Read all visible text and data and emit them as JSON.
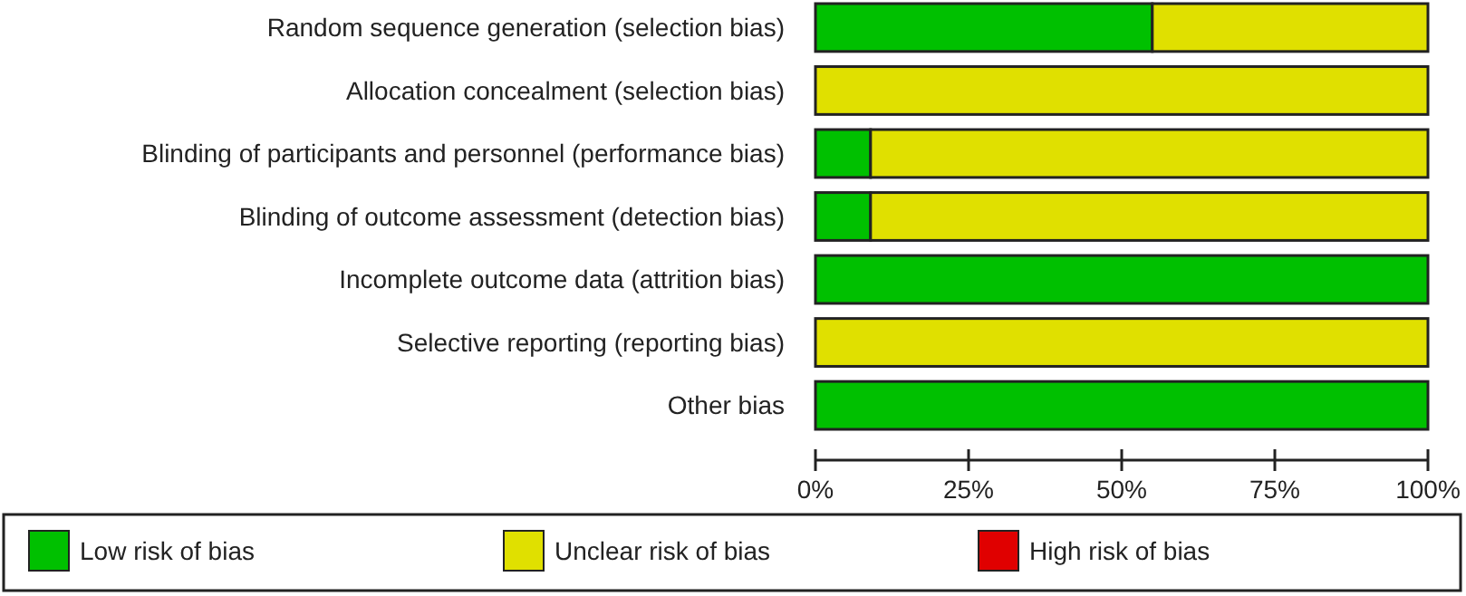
{
  "chart_data": {
    "type": "bar",
    "orientation": "horizontal",
    "stacked": true,
    "categories": [
      "Random sequence generation (selection bias)",
      "Allocation concealment (selection bias)",
      "Blinding of participants and personnel (performance bias)",
      "Blinding of outcome assessment (detection bias)",
      "Incomplete outcome data (attrition bias)",
      "Selective reporting (reporting bias)",
      "Other bias"
    ],
    "series": [
      {
        "name": "Low risk of bias",
        "color": "#00c000",
        "values": [
          55,
          0,
          9,
          9,
          100,
          0,
          100
        ]
      },
      {
        "name": "Unclear risk of bias",
        "color": "#e0e000",
        "values": [
          45,
          100,
          91,
          91,
          0,
          100,
          0
        ]
      },
      {
        "name": "High risk of bias",
        "color": "#e00000",
        "values": [
          0,
          0,
          0,
          0,
          0,
          0,
          0
        ]
      }
    ],
    "xlim": [
      0,
      100
    ],
    "xticks": [
      {
        "value": 0,
        "label": "0%"
      },
      {
        "value": 25,
        "label": "25%"
      },
      {
        "value": 50,
        "label": "50%"
      },
      {
        "value": 75,
        "label": "75%"
      },
      {
        "value": 100,
        "label": "100%"
      }
    ],
    "grid": false,
    "legend": "bottom"
  }
}
